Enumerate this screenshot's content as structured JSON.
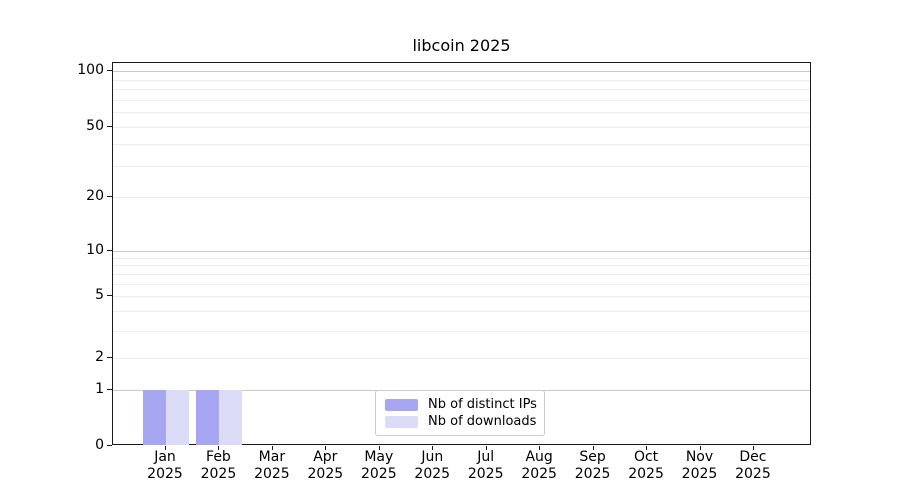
{
  "chart_data": {
    "type": "bar",
    "title": "libcoin 2025",
    "categories": [
      "Jan 2025",
      "Feb 2025",
      "Mar 2025",
      "Apr 2025",
      "May 2025",
      "Jun 2025",
      "Jul 2025",
      "Aug 2025",
      "Sep 2025",
      "Oct 2025",
      "Nov 2025",
      "Dec 2025"
    ],
    "x_tick_months": [
      "Jan",
      "Feb",
      "Mar",
      "Apr",
      "May",
      "Jun",
      "Jul",
      "Aug",
      "Sep",
      "Oct",
      "Nov",
      "Dec"
    ],
    "x_tick_year": "2025",
    "series": [
      {
        "name": "Nb of distinct IPs",
        "color": "#a6a6f2",
        "values": [
          1,
          1,
          0,
          0,
          0,
          0,
          0,
          0,
          0,
          0,
          0,
          0
        ]
      },
      {
        "name": "Nb of downloads",
        "color": "#dcdcf8",
        "values": [
          1,
          1,
          0,
          0,
          0,
          0,
          0,
          0,
          0,
          0,
          0,
          0
        ]
      }
    ],
    "y_axis": {
      "scale": "symlog",
      "range": [
        0,
        100
      ],
      "tick_values": [
        100,
        50,
        20,
        10,
        5,
        2,
        1,
        0
      ],
      "tick_labels": [
        "100",
        "50",
        "20",
        "10",
        "5",
        "2",
        "1",
        "0"
      ],
      "major_gridline_values": [
        100,
        10,
        1
      ],
      "minor_gridline_values": [
        90,
        80,
        70,
        60,
        50,
        40,
        30,
        20,
        9,
        8,
        7,
        6,
        5,
        4,
        3,
        2
      ]
    },
    "grid": true,
    "legend": {
      "position": "lower center"
    }
  },
  "colors": {
    "background": "#ffffff",
    "axis": "#1a1a1a",
    "text": "#000000",
    "major_grid": "#c8c8c8",
    "minor_grid": "#ededed",
    "legend_border": "#cccccc"
  }
}
